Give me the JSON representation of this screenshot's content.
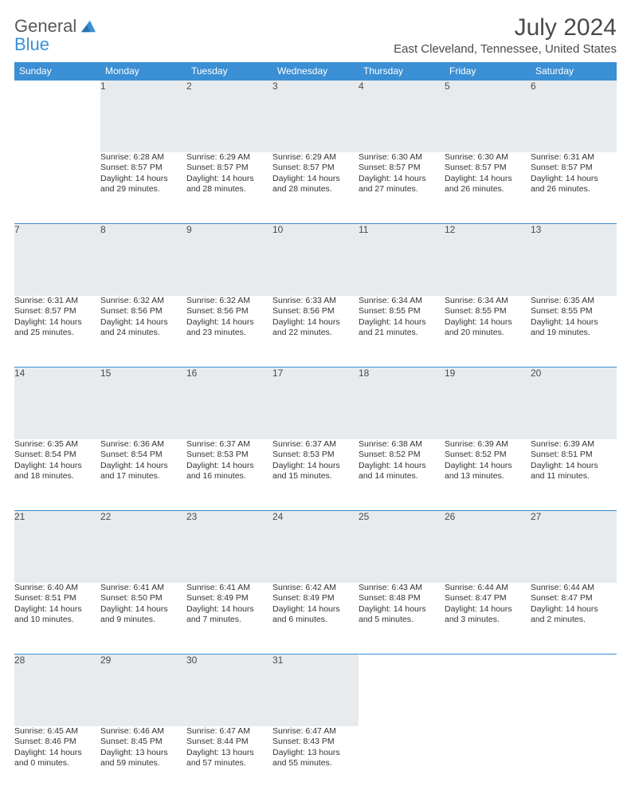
{
  "logo": {
    "text1": "General",
    "text2": "Blue"
  },
  "title": "July 2024",
  "location": "East Cleveland, Tennessee, United States",
  "colors": {
    "header_bg": "#3b8fd4",
    "header_text": "#ffffff",
    "daynum_bg": "#e7ebee",
    "text": "#333333",
    "border": "#3b8fd4"
  },
  "day_headers": [
    "Sunday",
    "Monday",
    "Tuesday",
    "Wednesday",
    "Thursday",
    "Friday",
    "Saturday"
  ],
  "weeks": [
    {
      "nums": [
        "",
        "1",
        "2",
        "3",
        "4",
        "5",
        "6"
      ],
      "cells": [
        null,
        {
          "sunrise": "Sunrise: 6:28 AM",
          "sunset": "Sunset: 8:57 PM",
          "day1": "Daylight: 14 hours",
          "day2": "and 29 minutes."
        },
        {
          "sunrise": "Sunrise: 6:29 AM",
          "sunset": "Sunset: 8:57 PM",
          "day1": "Daylight: 14 hours",
          "day2": "and 28 minutes."
        },
        {
          "sunrise": "Sunrise: 6:29 AM",
          "sunset": "Sunset: 8:57 PM",
          "day1": "Daylight: 14 hours",
          "day2": "and 28 minutes."
        },
        {
          "sunrise": "Sunrise: 6:30 AM",
          "sunset": "Sunset: 8:57 PM",
          "day1": "Daylight: 14 hours",
          "day2": "and 27 minutes."
        },
        {
          "sunrise": "Sunrise: 6:30 AM",
          "sunset": "Sunset: 8:57 PM",
          "day1": "Daylight: 14 hours",
          "day2": "and 26 minutes."
        },
        {
          "sunrise": "Sunrise: 6:31 AM",
          "sunset": "Sunset: 8:57 PM",
          "day1": "Daylight: 14 hours",
          "day2": "and 26 minutes."
        }
      ]
    },
    {
      "nums": [
        "7",
        "8",
        "9",
        "10",
        "11",
        "12",
        "13"
      ],
      "cells": [
        {
          "sunrise": "Sunrise: 6:31 AM",
          "sunset": "Sunset: 8:57 PM",
          "day1": "Daylight: 14 hours",
          "day2": "and 25 minutes."
        },
        {
          "sunrise": "Sunrise: 6:32 AM",
          "sunset": "Sunset: 8:56 PM",
          "day1": "Daylight: 14 hours",
          "day2": "and 24 minutes."
        },
        {
          "sunrise": "Sunrise: 6:32 AM",
          "sunset": "Sunset: 8:56 PM",
          "day1": "Daylight: 14 hours",
          "day2": "and 23 minutes."
        },
        {
          "sunrise": "Sunrise: 6:33 AM",
          "sunset": "Sunset: 8:56 PM",
          "day1": "Daylight: 14 hours",
          "day2": "and 22 minutes."
        },
        {
          "sunrise": "Sunrise: 6:34 AM",
          "sunset": "Sunset: 8:55 PM",
          "day1": "Daylight: 14 hours",
          "day2": "and 21 minutes."
        },
        {
          "sunrise": "Sunrise: 6:34 AM",
          "sunset": "Sunset: 8:55 PM",
          "day1": "Daylight: 14 hours",
          "day2": "and 20 minutes."
        },
        {
          "sunrise": "Sunrise: 6:35 AM",
          "sunset": "Sunset: 8:55 PM",
          "day1": "Daylight: 14 hours",
          "day2": "and 19 minutes."
        }
      ]
    },
    {
      "nums": [
        "14",
        "15",
        "16",
        "17",
        "18",
        "19",
        "20"
      ],
      "cells": [
        {
          "sunrise": "Sunrise: 6:35 AM",
          "sunset": "Sunset: 8:54 PM",
          "day1": "Daylight: 14 hours",
          "day2": "and 18 minutes."
        },
        {
          "sunrise": "Sunrise: 6:36 AM",
          "sunset": "Sunset: 8:54 PM",
          "day1": "Daylight: 14 hours",
          "day2": "and 17 minutes."
        },
        {
          "sunrise": "Sunrise: 6:37 AM",
          "sunset": "Sunset: 8:53 PM",
          "day1": "Daylight: 14 hours",
          "day2": "and 16 minutes."
        },
        {
          "sunrise": "Sunrise: 6:37 AM",
          "sunset": "Sunset: 8:53 PM",
          "day1": "Daylight: 14 hours",
          "day2": "and 15 minutes."
        },
        {
          "sunrise": "Sunrise: 6:38 AM",
          "sunset": "Sunset: 8:52 PM",
          "day1": "Daylight: 14 hours",
          "day2": "and 14 minutes."
        },
        {
          "sunrise": "Sunrise: 6:39 AM",
          "sunset": "Sunset: 8:52 PM",
          "day1": "Daylight: 14 hours",
          "day2": "and 13 minutes."
        },
        {
          "sunrise": "Sunrise: 6:39 AM",
          "sunset": "Sunset: 8:51 PM",
          "day1": "Daylight: 14 hours",
          "day2": "and 11 minutes."
        }
      ]
    },
    {
      "nums": [
        "21",
        "22",
        "23",
        "24",
        "25",
        "26",
        "27"
      ],
      "cells": [
        {
          "sunrise": "Sunrise: 6:40 AM",
          "sunset": "Sunset: 8:51 PM",
          "day1": "Daylight: 14 hours",
          "day2": "and 10 minutes."
        },
        {
          "sunrise": "Sunrise: 6:41 AM",
          "sunset": "Sunset: 8:50 PM",
          "day1": "Daylight: 14 hours",
          "day2": "and 9 minutes."
        },
        {
          "sunrise": "Sunrise: 6:41 AM",
          "sunset": "Sunset: 8:49 PM",
          "day1": "Daylight: 14 hours",
          "day2": "and 7 minutes."
        },
        {
          "sunrise": "Sunrise: 6:42 AM",
          "sunset": "Sunset: 8:49 PM",
          "day1": "Daylight: 14 hours",
          "day2": "and 6 minutes."
        },
        {
          "sunrise": "Sunrise: 6:43 AM",
          "sunset": "Sunset: 8:48 PM",
          "day1": "Daylight: 14 hours",
          "day2": "and 5 minutes."
        },
        {
          "sunrise": "Sunrise: 6:44 AM",
          "sunset": "Sunset: 8:47 PM",
          "day1": "Daylight: 14 hours",
          "day2": "and 3 minutes."
        },
        {
          "sunrise": "Sunrise: 6:44 AM",
          "sunset": "Sunset: 8:47 PM",
          "day1": "Daylight: 14 hours",
          "day2": "and 2 minutes."
        }
      ]
    },
    {
      "nums": [
        "28",
        "29",
        "30",
        "31",
        "",
        "",
        ""
      ],
      "cells": [
        {
          "sunrise": "Sunrise: 6:45 AM",
          "sunset": "Sunset: 8:46 PM",
          "day1": "Daylight: 14 hours",
          "day2": "and 0 minutes."
        },
        {
          "sunrise": "Sunrise: 6:46 AM",
          "sunset": "Sunset: 8:45 PM",
          "day1": "Daylight: 13 hours",
          "day2": "and 59 minutes."
        },
        {
          "sunrise": "Sunrise: 6:47 AM",
          "sunset": "Sunset: 8:44 PM",
          "day1": "Daylight: 13 hours",
          "day2": "and 57 minutes."
        },
        {
          "sunrise": "Sunrise: 6:47 AM",
          "sunset": "Sunset: 8:43 PM",
          "day1": "Daylight: 13 hours",
          "day2": "and 55 minutes."
        },
        null,
        null,
        null
      ]
    }
  ]
}
